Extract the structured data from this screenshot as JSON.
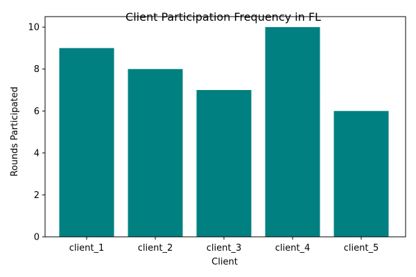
{
  "chart_data": {
    "type": "bar",
    "title": "Client Participation Frequency in FL",
    "xlabel": "Client",
    "ylabel": "Rounds Participated",
    "categories": [
      "client_1",
      "client_2",
      "client_3",
      "client_4",
      "client_5"
    ],
    "values": [
      9,
      8,
      7,
      10,
      6
    ],
    "ylim": [
      0,
      10.5
    ],
    "yticks": [
      0,
      2,
      4,
      6,
      8,
      10
    ],
    "grid": false,
    "bar_color": "#008080"
  }
}
